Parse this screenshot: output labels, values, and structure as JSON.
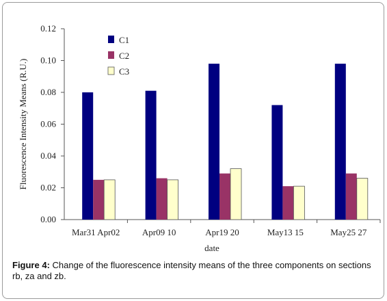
{
  "caption": {
    "label": "Figure 4:",
    "text": " Change of the fluorescence intensity means of the three components on sections rb, za and zb."
  },
  "chart_data": {
    "type": "bar",
    "xlabel": "date",
    "ylabel": "Fluorescence Intensity Means (R.U.)",
    "ylim": [
      0,
      0.12
    ],
    "yticks": [
      "0.00",
      "0.02",
      "0.04",
      "0.06",
      "0.08",
      "0.10",
      "0.12"
    ],
    "grid": false,
    "legend_position": "top-left",
    "categories": [
      "Mar31 Apr02",
      "Apr09 10",
      "Apr19 20",
      "May13 15",
      "May25 27"
    ],
    "series": [
      {
        "name": "C1",
        "color": "#000080",
        "values": [
          0.08,
          0.081,
          0.098,
          0.072,
          0.098
        ]
      },
      {
        "name": "C2",
        "color": "#993366",
        "values": [
          0.025,
          0.026,
          0.029,
          0.021,
          0.029
        ]
      },
      {
        "name": "C3",
        "color": "#FFFFCC",
        "values": [
          0.025,
          0.025,
          0.032,
          0.021,
          0.026
        ]
      }
    ]
  }
}
